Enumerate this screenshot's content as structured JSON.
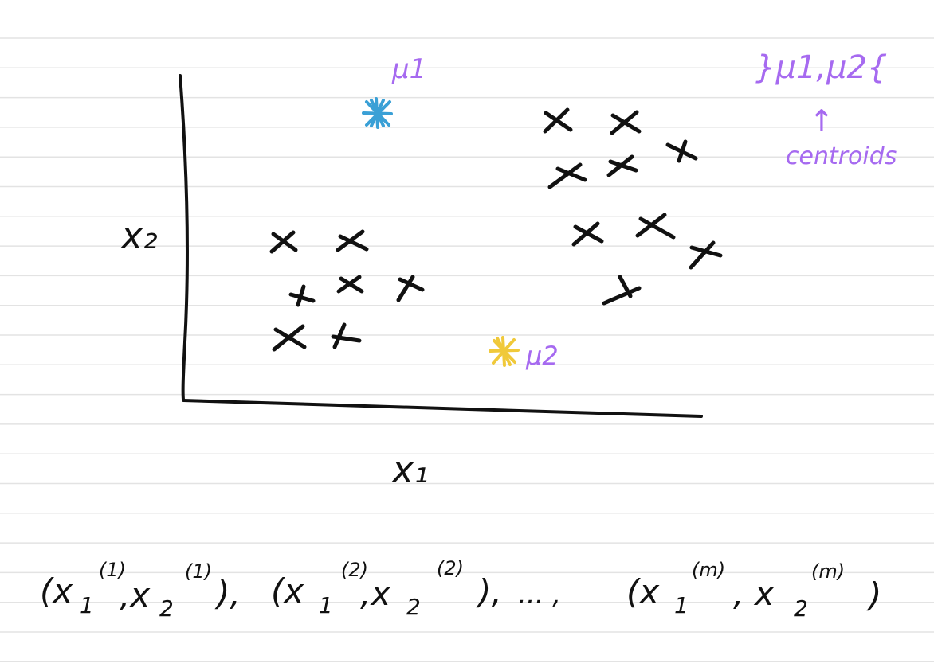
{
  "labels": {
    "x_axis_label": "x₁",
    "y_axis_label": "x₂",
    "centroid_1_label": "μ1",
    "centroid_2_label": "μ2",
    "centroid_set": "}μ1,μ2{",
    "centroids_word": "centroids",
    "arrow": "↑"
  },
  "formula": {
    "open_1": "(x",
    "sub_1a": "1",
    "sup_1a": "(1)",
    "mid_1": ",x",
    "sub_1b": "2",
    "sup_1b": "(1)",
    "close_1": "),",
    "open_2": "(x",
    "sub_2a": "1",
    "sup_2a": "(2)",
    "mid_2": ",x",
    "sub_2b": "2",
    "sup_2b": "(2)",
    "close_2": "),",
    "ellipsis": "... ,",
    "open_m": "(x",
    "sub_ma": "1",
    "sup_ma": "(m)",
    "mid_m": ", x",
    "sub_mb": "2",
    "sup_mb": "(m)",
    "close_m": ")"
  },
  "colors": {
    "ink": "#111111",
    "purple": "#a66af0",
    "blue_centroid": "#3aa0d6",
    "yellow_centroid": "#f0c93a",
    "rule_lines": "#e3e3e3"
  },
  "icons": {
    "data_point": "x-mark-icon",
    "centroid": "asterisk-star-icon"
  }
}
